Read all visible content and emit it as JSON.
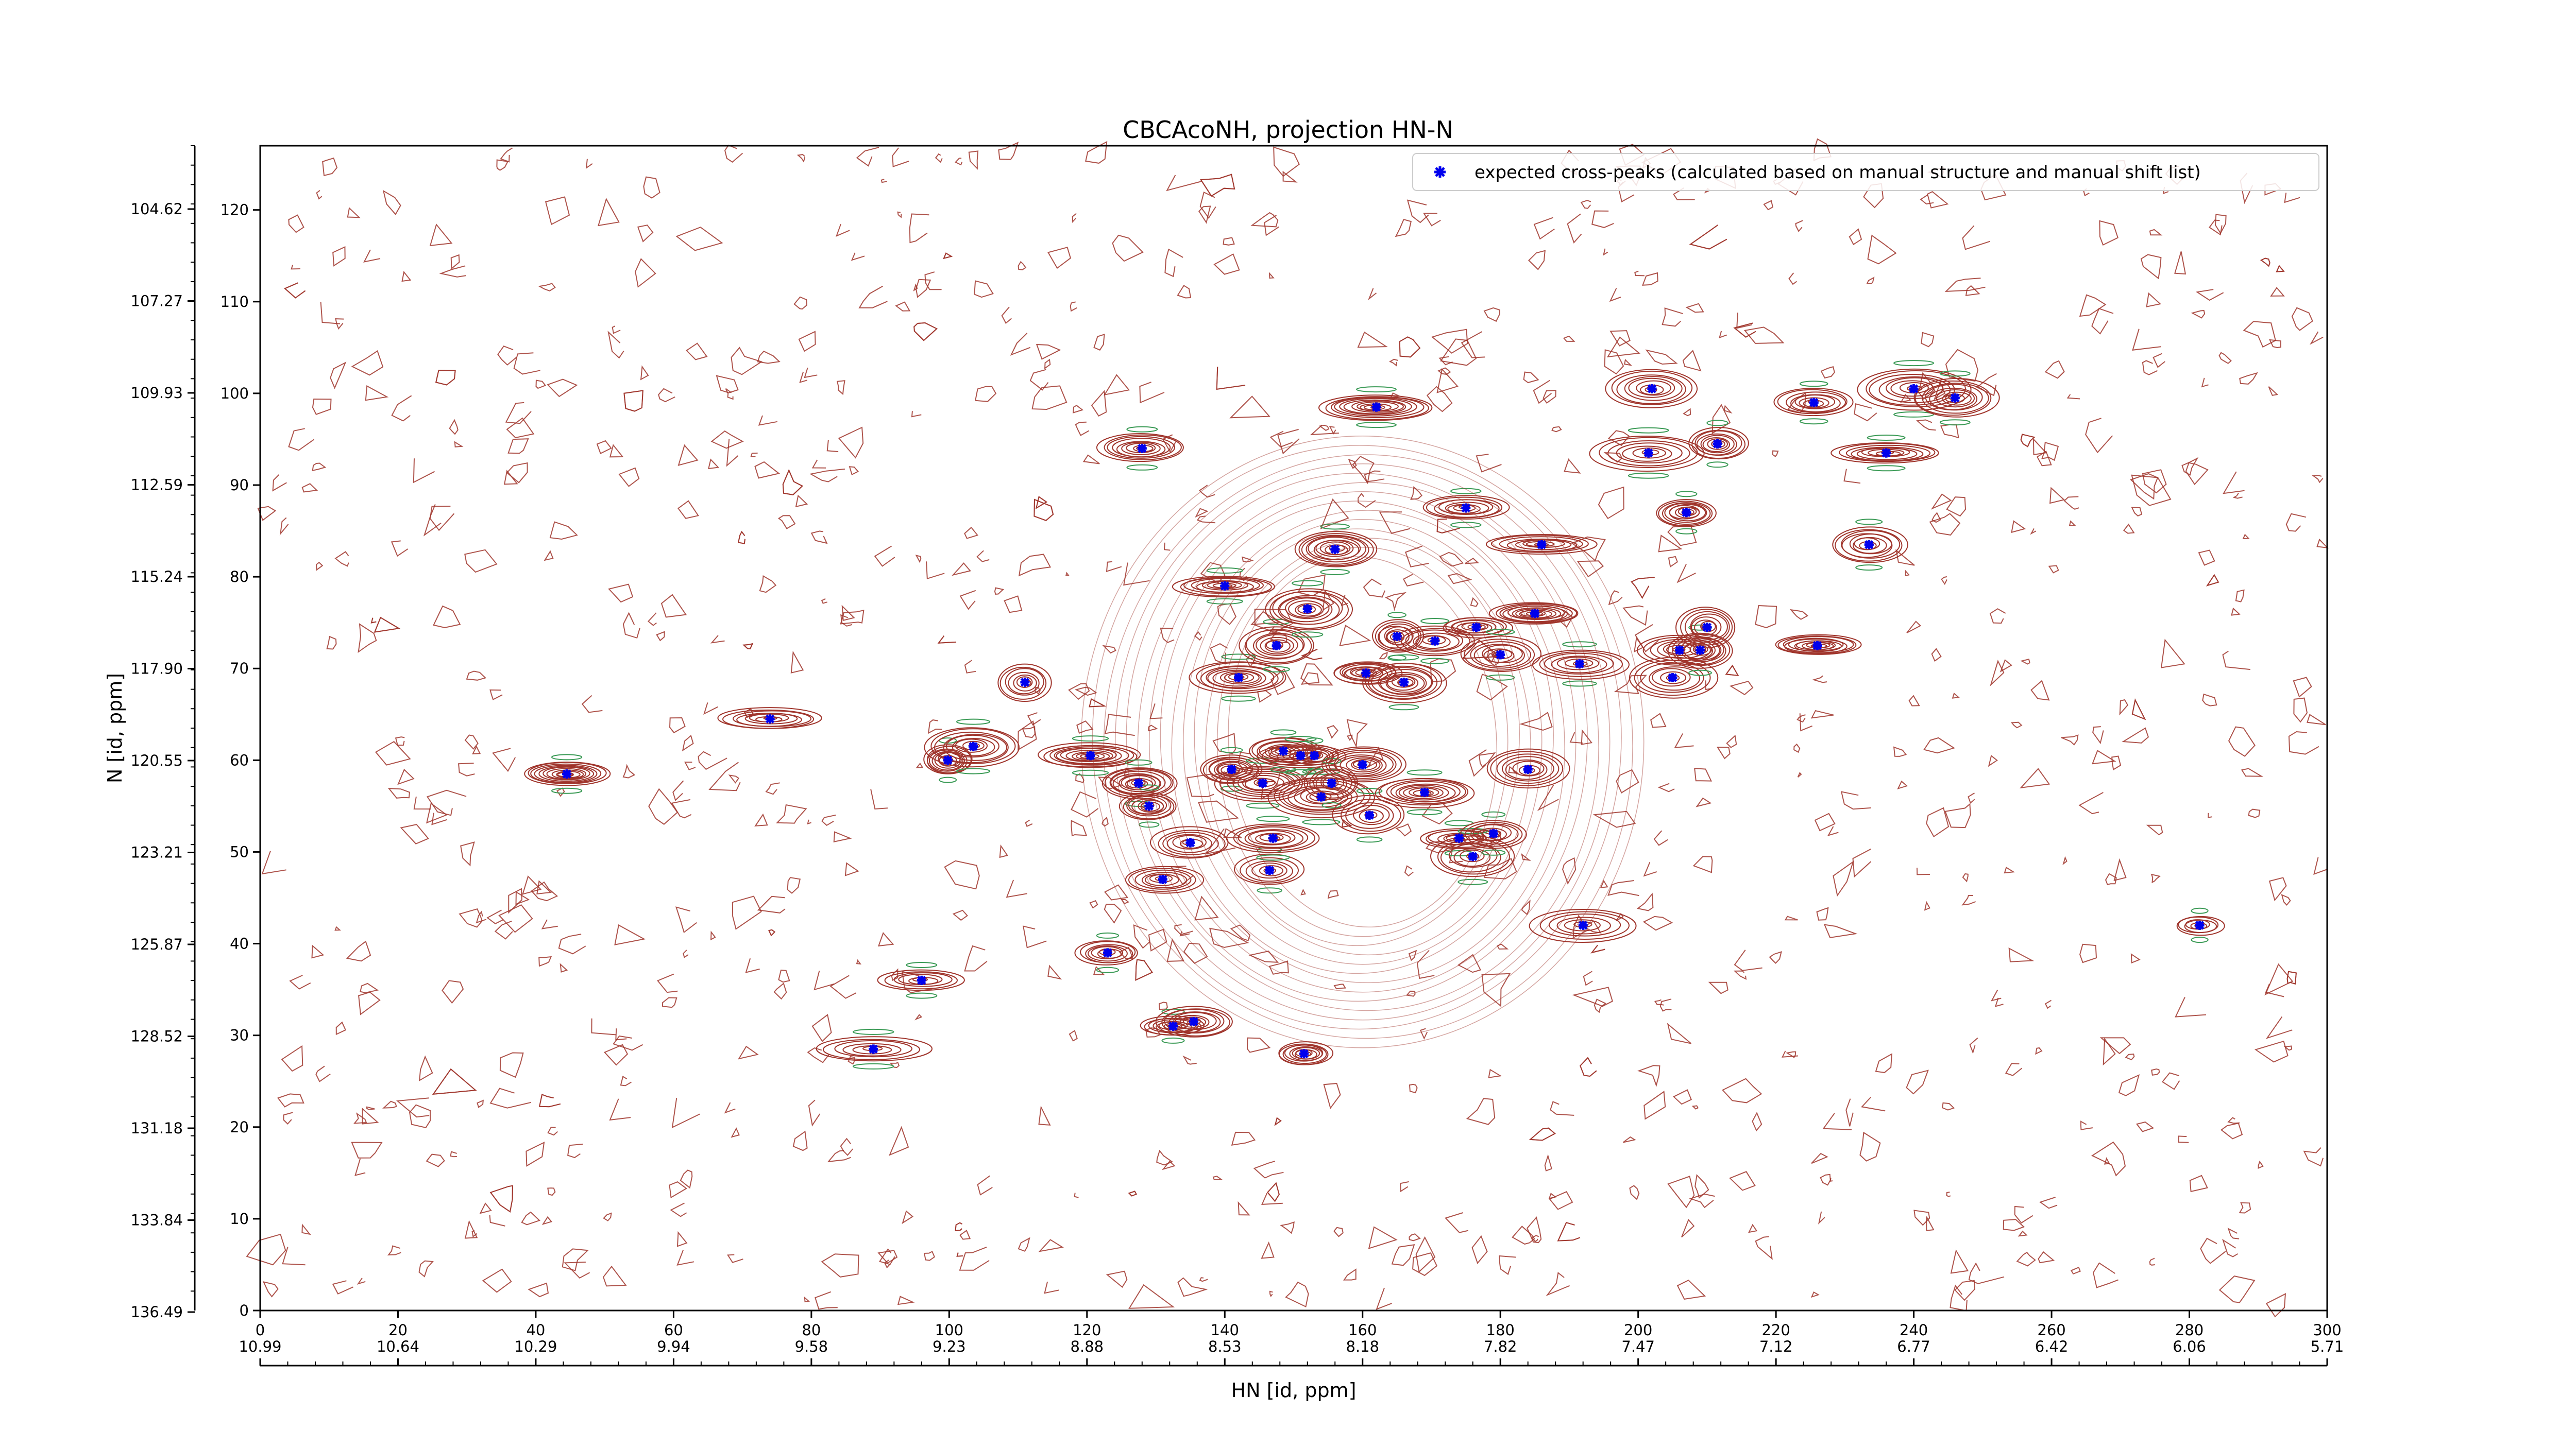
{
  "chart_data": {
    "type": "scatter",
    "title": "CBCAcoNH, projection HN-N",
    "xlabel": "HN [id, ppm]",
    "ylabel": "N [id, ppm]",
    "index_x_range": [
      0,
      300
    ],
    "index_y_range": [
      0,
      127
    ],
    "index_x_ticks": [
      0,
      20,
      40,
      60,
      80,
      100,
      120,
      140,
      160,
      180,
      200,
      220,
      240,
      260,
      280,
      300
    ],
    "index_y_ticks": [
      0,
      10,
      20,
      30,
      40,
      50,
      60,
      70,
      80,
      90,
      100,
      110,
      120
    ],
    "ppm_x_ticks": [
      "10.99",
      "10.64",
      "10.29",
      "9.94",
      "9.58",
      "9.23",
      "8.88",
      "8.53",
      "8.18",
      "7.82",
      "7.47",
      "7.12",
      "6.77",
      "6.42",
      "6.06",
      "5.71"
    ],
    "ppm_y_ticks": [
      "136.49",
      "133.84",
      "131.18",
      "128.52",
      "125.87",
      "123.21",
      "120.55",
      "117.90",
      "115.24",
      "112.59",
      "109.93",
      "107.27",
      "104.62"
    ],
    "legend": {
      "position": "top-right",
      "label": "expected cross-peaks (calculated based on manual structure and manual shift list)"
    },
    "colors": {
      "marker": "#0000ee",
      "contour_positive": "#a0352c",
      "contour_negative": "#3a9a55"
    },
    "series": [
      {
        "name": "expected cross-peaks (calculated based on manual structure and manual shift list)",
        "points": [
          [
            44.5,
            58.5
          ],
          [
            74,
            64.5
          ],
          [
            99.8,
            60
          ],
          [
            103.5,
            61.5
          ],
          [
            111,
            68.5
          ],
          [
            120.5,
            60.5
          ],
          [
            123,
            39
          ],
          [
            128,
            94
          ],
          [
            127.5,
            57.5
          ],
          [
            129,
            55
          ],
          [
            131,
            47
          ],
          [
            132.5,
            31
          ],
          [
            135.5,
            31.5
          ],
          [
            135,
            51
          ],
          [
            140,
            79
          ],
          [
            141,
            59
          ],
          [
            142,
            69
          ],
          [
            145.5,
            57.5
          ],
          [
            146.5,
            48
          ],
          [
            147,
            51.5
          ],
          [
            147.5,
            72.5
          ],
          [
            148.5,
            61
          ],
          [
            151,
            60.5
          ],
          [
            152,
            76.5
          ],
          [
            153,
            60.5
          ],
          [
            154,
            56
          ],
          [
            155.5,
            57.5
          ],
          [
            156,
            83
          ],
          [
            151.5,
            28
          ],
          [
            160,
            59.5
          ],
          [
            160.5,
            69.5
          ],
          [
            161,
            54
          ],
          [
            162,
            98.5
          ],
          [
            165,
            73.5
          ],
          [
            166,
            68.5
          ],
          [
            169,
            56.5
          ],
          [
            170.5,
            73
          ],
          [
            174,
            51.5
          ],
          [
            175,
            87.5
          ],
          [
            176,
            49.5
          ],
          [
            176.5,
            74.5
          ],
          [
            179,
            52
          ],
          [
            180,
            71.5
          ],
          [
            184,
            59
          ],
          [
            185,
            76
          ],
          [
            186,
            83.5
          ],
          [
            191.5,
            70.5
          ],
          [
            192,
            42
          ],
          [
            201.5,
            93.5
          ],
          [
            202,
            100.5
          ],
          [
            205,
            69
          ],
          [
            206,
            72
          ],
          [
            207,
            87
          ],
          [
            209,
            72
          ],
          [
            210,
            74.5
          ],
          [
            211.5,
            94.5
          ],
          [
            225.5,
            99
          ],
          [
            226,
            72.5
          ],
          [
            233.5,
            83.5
          ],
          [
            236,
            93.5
          ],
          [
            240,
            100.5
          ],
          [
            246,
            99.5
          ],
          [
            281.5,
            42
          ],
          [
            89,
            28.5
          ],
          [
            96,
            36
          ]
        ]
      }
    ]
  }
}
